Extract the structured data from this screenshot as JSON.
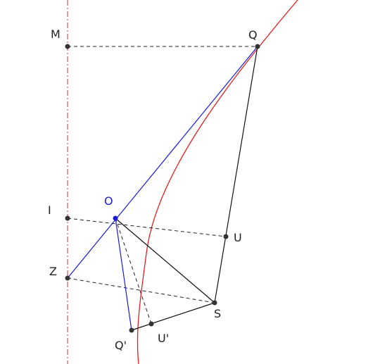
{
  "nodes": [
    {
      "label": "M"
    },
    {
      "label": "Q"
    },
    {
      "label": "I"
    },
    {
      "label": "O"
    },
    {
      "label": "U"
    },
    {
      "label": "Z"
    },
    {
      "label": "S"
    },
    {
      "label": "Q'"
    },
    {
      "label": "U'"
    }
  ]
}
